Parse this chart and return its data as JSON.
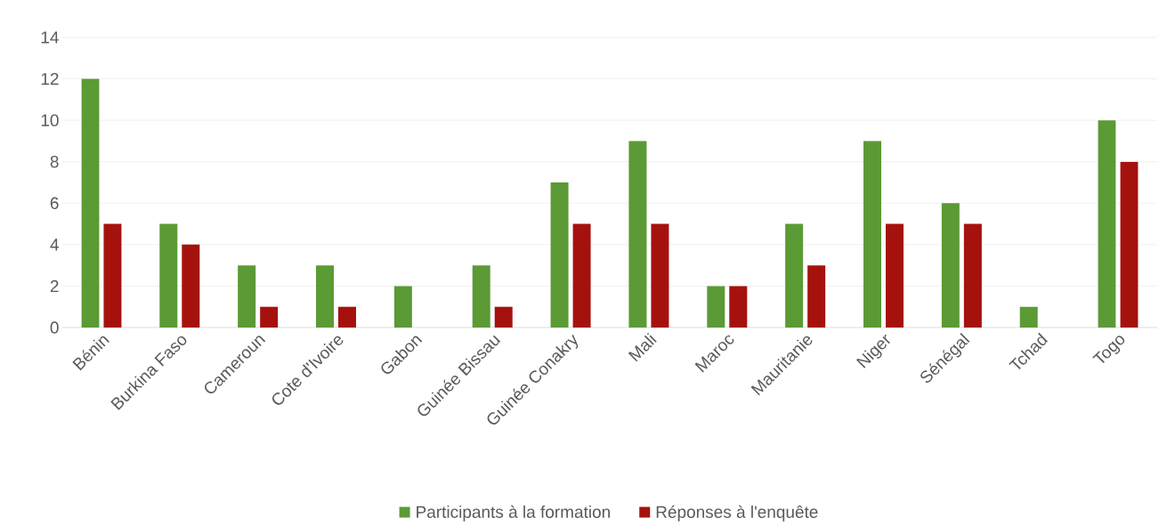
{
  "chart_data": {
    "type": "bar",
    "categories": [
      "Bénin",
      "Burkina Faso",
      "Cameroun",
      "Cote d'Ivoire",
      "Gabon",
      "Guinée Bissau",
      "Guinée Conakry",
      "Mali",
      "Maroc",
      "Mauritanie",
      "Niger",
      "Sénégal",
      "Tchad",
      "Togo"
    ],
    "series": [
      {
        "name": "Participants à la formation",
        "color": "#5b9a35",
        "values": [
          12,
          5,
          3,
          3,
          2,
          3,
          7,
          9,
          2,
          5,
          9,
          6,
          1,
          10
        ]
      },
      {
        "name": "Réponses à l'enquête",
        "color": "#a5120e",
        "values": [
          5,
          4,
          1,
          1,
          0,
          1,
          5,
          5,
          2,
          3,
          5,
          5,
          0,
          8
        ]
      }
    ],
    "ylim": [
      0,
      14
    ],
    "yticks": [
      0,
      2,
      4,
      6,
      8,
      10,
      12,
      14
    ],
    "grid": "y",
    "legend": "bottom"
  }
}
